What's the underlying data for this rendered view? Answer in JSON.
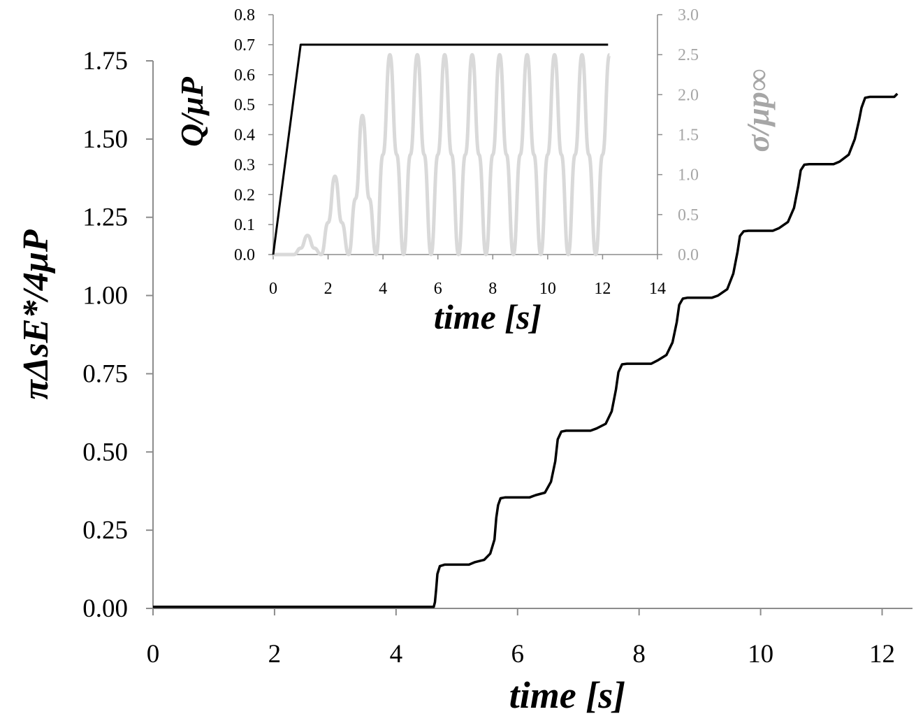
{
  "chart_data": [
    {
      "type": "line",
      "xlabel": "time [s]",
      "ylabel": "πΔsE*/4μP",
      "xlim": [
        0,
        12.5
      ],
      "ylim": [
        0,
        1.75
      ],
      "x_ticks": [
        "0",
        "2",
        "4",
        "6",
        "8",
        "10",
        "12"
      ],
      "y_ticks": [
        "0.00",
        "0.25",
        "0.50",
        "0.75",
        "1.00",
        "1.25",
        "1.50",
        "1.75"
      ],
      "grid": false,
      "series": [
        {
          "color": "#000000",
          "points": [
            [
              0.0,
              0.005
            ],
            [
              4.62,
              0.005
            ],
            [
              4.64,
              0.02
            ],
            [
              4.66,
              0.06
            ],
            [
              4.68,
              0.11
            ],
            [
              4.72,
              0.135
            ],
            [
              4.8,
              0.14
            ],
            [
              5.2,
              0.14
            ],
            [
              5.3,
              0.148
            ],
            [
              5.45,
              0.155
            ],
            [
              5.55,
              0.175
            ],
            [
              5.62,
              0.22
            ],
            [
              5.65,
              0.29
            ],
            [
              5.68,
              0.33
            ],
            [
              5.72,
              0.352
            ],
            [
              5.8,
              0.355
            ],
            [
              6.2,
              0.355
            ],
            [
              6.3,
              0.362
            ],
            [
              6.45,
              0.37
            ],
            [
              6.55,
              0.405
            ],
            [
              6.62,
              0.47
            ],
            [
              6.66,
              0.54
            ],
            [
              6.72,
              0.565
            ],
            [
              6.8,
              0.568
            ],
            [
              7.2,
              0.568
            ],
            [
              7.3,
              0.575
            ],
            [
              7.45,
              0.59
            ],
            [
              7.55,
              0.63
            ],
            [
              7.62,
              0.7
            ],
            [
              7.66,
              0.755
            ],
            [
              7.72,
              0.78
            ],
            [
              7.8,
              0.782
            ],
            [
              8.2,
              0.782
            ],
            [
              8.3,
              0.792
            ],
            [
              8.45,
              0.81
            ],
            [
              8.55,
              0.85
            ],
            [
              8.62,
              0.915
            ],
            [
              8.66,
              0.97
            ],
            [
              8.72,
              0.99
            ],
            [
              8.8,
              0.993
            ],
            [
              9.2,
              0.993
            ],
            [
              9.3,
              1.0
            ],
            [
              9.45,
              1.02
            ],
            [
              9.55,
              1.07
            ],
            [
              9.62,
              1.14
            ],
            [
              9.66,
              1.19
            ],
            [
              9.72,
              1.205
            ],
            [
              9.8,
              1.207
            ],
            [
              10.2,
              1.207
            ],
            [
              10.3,
              1.215
            ],
            [
              10.45,
              1.235
            ],
            [
              10.55,
              1.28
            ],
            [
              10.62,
              1.35
            ],
            [
              10.66,
              1.4
            ],
            [
              10.72,
              1.418
            ],
            [
              10.8,
              1.42
            ],
            [
              11.2,
              1.42
            ],
            [
              11.3,
              1.428
            ],
            [
              11.45,
              1.45
            ],
            [
              11.55,
              1.5
            ],
            [
              11.62,
              1.56
            ],
            [
              11.66,
              1.6
            ],
            [
              11.72,
              1.632
            ],
            [
              11.8,
              1.635
            ],
            [
              12.2,
              1.635
            ],
            [
              12.25,
              1.645
            ]
          ]
        }
      ]
    },
    {
      "type": "line",
      "xlabel": "time [s]",
      "ylabel": "Q/μP",
      "y2label": "σ/μp∞",
      "xlim": [
        0,
        14
      ],
      "ylim": [
        0,
        0.8
      ],
      "y2lim": [
        0,
        3.0
      ],
      "x_ticks": [
        "0",
        "2",
        "4",
        "6",
        "8",
        "10",
        "12",
        "14"
      ],
      "y_ticks": [
        "0.0",
        "0.1",
        "0.2",
        "0.3",
        "0.4",
        "0.5",
        "0.6",
        "0.7",
        "0.8"
      ],
      "y2_ticks": [
        "0.0",
        "0.5",
        "1.0",
        "1.5",
        "2.0",
        "2.5",
        "3.0"
      ],
      "grid": false,
      "series": [
        {
          "axis": "left",
          "color": "#000000",
          "points": [
            [
              0,
              0
            ],
            [
              1,
              0.7
            ],
            [
              12.2,
              0.7
            ]
          ]
        },
        {
          "axis": "right",
          "color": "#d9d9d9",
          "points": [
            [
              0,
              0
            ],
            [
              0.75,
              0
            ],
            [
              1.0,
              0.08
            ],
            [
              1.25,
              0.24
            ],
            [
              1.5,
              0.08
            ],
            [
              1.75,
              0
            ],
            [
              2.0,
              0.4
            ],
            [
              2.25,
              0.98
            ],
            [
              2.5,
              0.4
            ],
            [
              2.75,
              0
            ],
            [
              3.0,
              0.7
            ],
            [
              3.25,
              1.74
            ],
            [
              3.5,
              0.7
            ],
            [
              3.75,
              0
            ],
            [
              4.0,
              1.25
            ],
            [
              4.25,
              2.5
            ],
            [
              4.5,
              1.25
            ],
            [
              4.75,
              0
            ],
            [
              5.0,
              1.25
            ],
            [
              5.25,
              2.5
            ],
            [
              5.5,
              1.25
            ],
            [
              5.75,
              0
            ],
            [
              6.0,
              1.25
            ],
            [
              6.25,
              2.5
            ],
            [
              6.5,
              1.25
            ],
            [
              6.75,
              0
            ],
            [
              7.0,
              1.25
            ],
            [
              7.25,
              2.5
            ],
            [
              7.5,
              1.25
            ],
            [
              7.75,
              0
            ],
            [
              8.0,
              1.25
            ],
            [
              8.25,
              2.5
            ],
            [
              8.5,
              1.25
            ],
            [
              8.75,
              0
            ],
            [
              9.0,
              1.25
            ],
            [
              9.25,
              2.5
            ],
            [
              9.5,
              1.25
            ],
            [
              9.75,
              0
            ],
            [
              10.0,
              1.25
            ],
            [
              10.25,
              2.5
            ],
            [
              10.5,
              1.25
            ],
            [
              10.75,
              0
            ],
            [
              11.0,
              1.25
            ],
            [
              11.25,
              2.5
            ],
            [
              11.5,
              1.25
            ],
            [
              11.75,
              0
            ],
            [
              12.0,
              1.25
            ],
            [
              12.25,
              2.5
            ]
          ]
        }
      ]
    }
  ]
}
